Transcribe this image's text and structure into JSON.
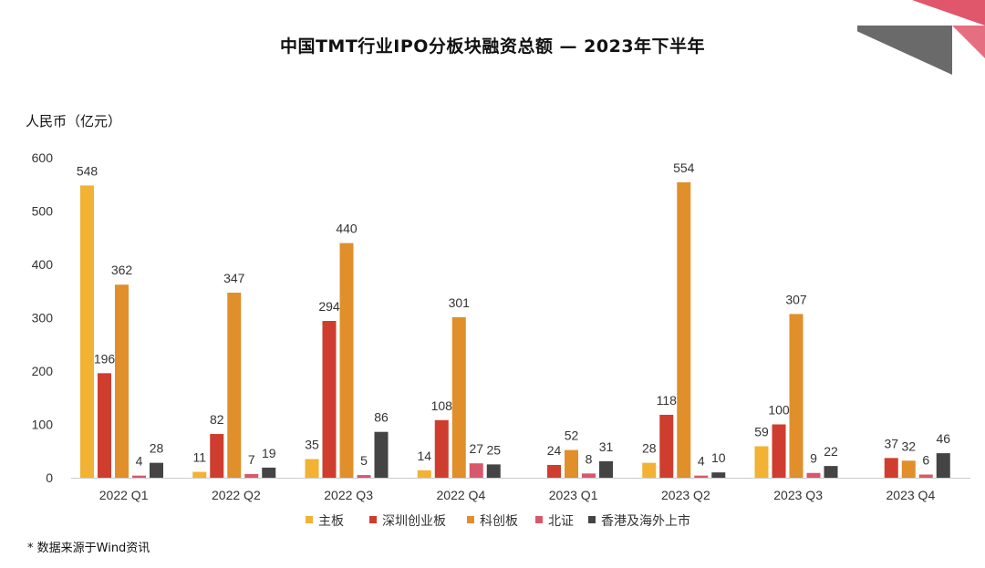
{
  "title": "中国TMT行业IPO分板块融资总额 — 2023年下半年",
  "unit_label": "人民币（亿元）",
  "source_note": "* 数据来源于Wind资讯",
  "colors": {
    "主板": "#f2b233",
    "深圳创业板": "#cf3d2e",
    "科创板": "#e08f2a",
    "北证": "#d9576c",
    "香港及海外上市": "#444444",
    "deco_pink": "#e0566a",
    "deco_gray": "#5a5a5a"
  },
  "chart_data": {
    "type": "bar",
    "title": "中国TMT行业IPO分板块融资总额 — 2023年下半年",
    "ylabel": "人民币（亿元）",
    "xlabel": "",
    "ylim": [
      0,
      600
    ],
    "yticks": [
      "0",
      "100",
      "200",
      "300",
      "400",
      "500",
      "600"
    ],
    "legend_position": "bottom",
    "grid": false,
    "categories": [
      "2022 Q1",
      "2022 Q2",
      "2022 Q3",
      "2022 Q4",
      "2023 Q1",
      "2023 Q2",
      "2023 Q3",
      "2023 Q4"
    ],
    "series": [
      {
        "name": "主板",
        "values": [
          548,
          11,
          35,
          14,
          null,
          28,
          59,
          null
        ]
      },
      {
        "name": "深圳创业板",
        "values": [
          196,
          82,
          294,
          108,
          24,
          118,
          100,
          37
        ]
      },
      {
        "name": "科创板",
        "values": [
          362,
          347,
          440,
          301,
          52,
          554,
          307,
          32
        ]
      },
      {
        "name": "北证",
        "values": [
          4,
          7,
          5,
          27,
          8,
          4,
          9,
          6
        ]
      },
      {
        "name": "香港及海外上市",
        "values": [
          28,
          19,
          86,
          25,
          31,
          10,
          22,
          46
        ]
      }
    ]
  }
}
